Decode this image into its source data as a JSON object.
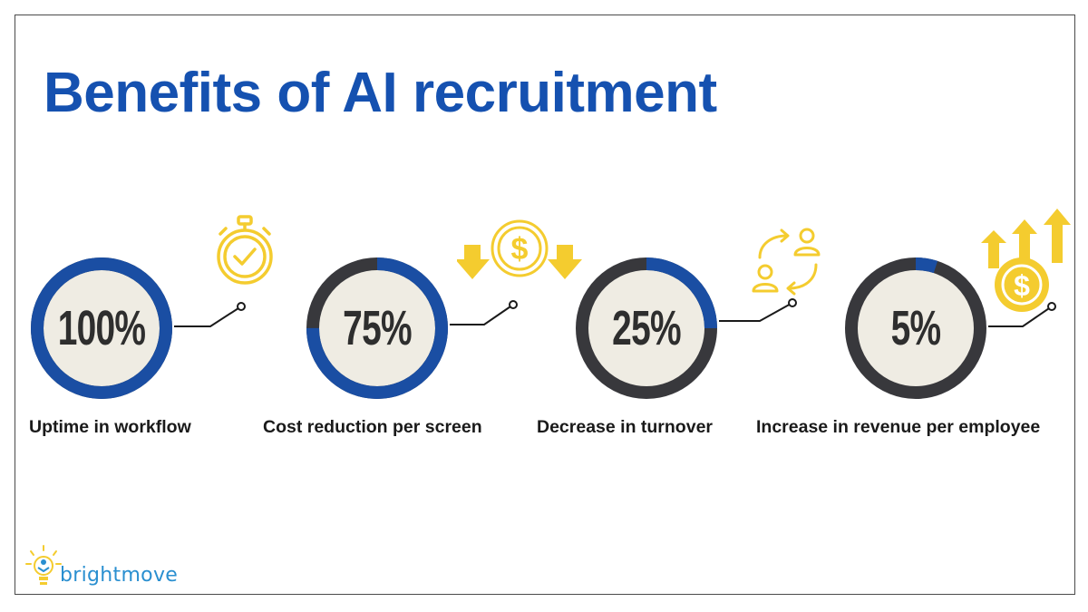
{
  "title": "Benefits of AI recruitment",
  "colors": {
    "title": "#1551b0",
    "ring_fill": "#1a4ea3",
    "ring_track": "#38383c",
    "ring_inner": "#efece3",
    "icon": "#f4cc2f",
    "logo_blue": "#2a8fd0"
  },
  "stats": [
    {
      "value": "100%",
      "label": "Uptime in workflow",
      "fraction": 1.0,
      "icon": "stopwatch-icon"
    },
    {
      "value": "75%",
      "label": "Cost reduction per screen",
      "fraction": 0.75,
      "icon": "dollar-down-arrows-icon"
    },
    {
      "value": "25%",
      "label": "Decrease in turnover",
      "fraction": 0.25,
      "icon": "people-cycle-icon"
    },
    {
      "value": "5%",
      "label": "Increase in revenue per employee",
      "fraction": 0.05,
      "icon": "dollar-up-arrows-icon"
    }
  ],
  "logo": {
    "text": "brightmove"
  }
}
